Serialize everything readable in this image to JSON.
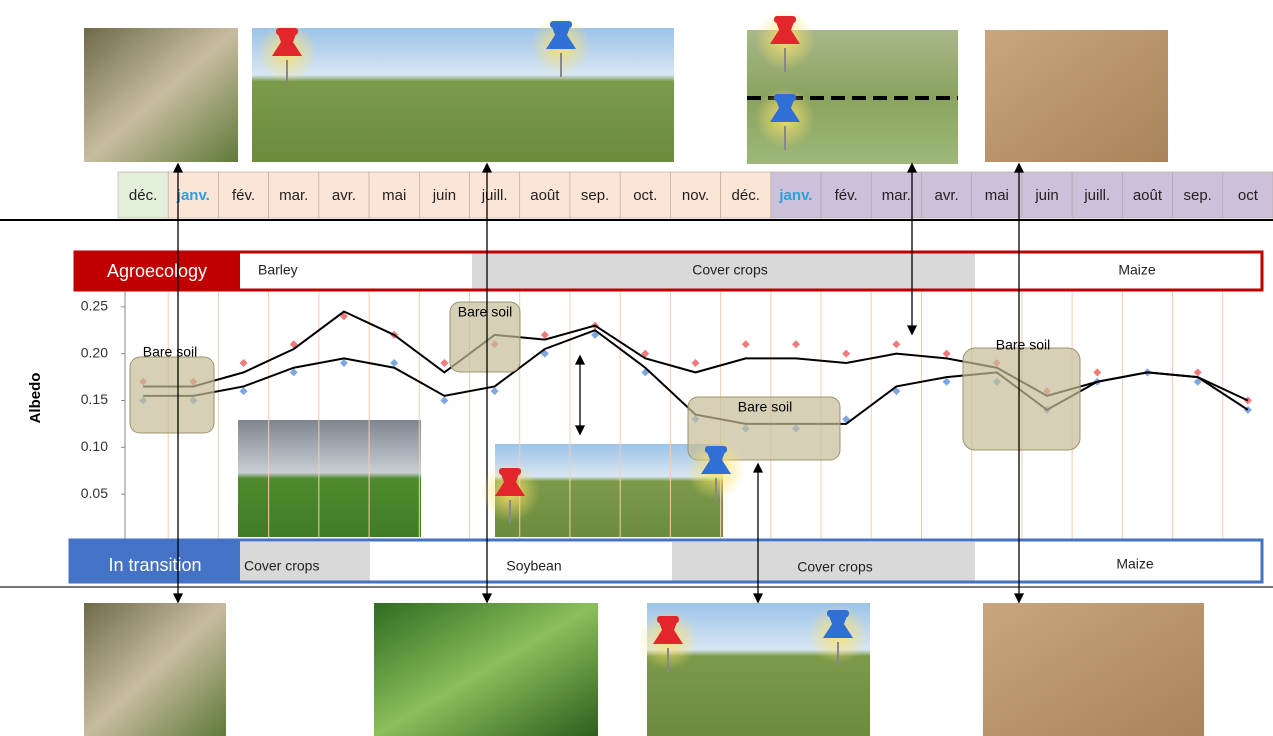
{
  "chart_data": {
    "type": "scatter",
    "y_label": "Albedo",
    "categories": [
      "déc.",
      "janv.",
      "fév.",
      "mar.",
      "avr.",
      "mai",
      "juin",
      "juill.",
      "août",
      "sep.",
      "oct.",
      "nov.",
      "déc.",
      "janv.",
      "fév.",
      "mar.",
      "avr.",
      "mai",
      "juin",
      "juill.",
      "août",
      "sep.",
      "oct"
    ],
    "series": [
      {
        "type": "scatter",
        "color": "#f07b7b",
        "values": [
          0.17,
          0.17,
          0.19,
          0.21,
          0.24,
          0.22,
          0.19,
          0.21,
          0.22,
          0.23,
          0.2,
          0.19,
          0.21,
          0.21,
          0.2,
          0.21,
          0.2,
          0.19,
          0.16,
          0.18,
          0.18,
          0.18,
          0.15
        ]
      },
      {
        "type": "scatter",
        "color": "#7ea6e0",
        "values": [
          0.15,
          0.15,
          0.16,
          0.18,
          0.19,
          0.19,
          0.15,
          0.16,
          0.2,
          0.22,
          0.18,
          0.13,
          0.12,
          0.12,
          0.13,
          0.16,
          0.17,
          0.17,
          0.14,
          0.17,
          0.18,
          0.17,
          0.14
        ]
      },
      {
        "type": "line",
        "color": "#000000",
        "values": [
          0.165,
          0.165,
          0.18,
          0.205,
          0.245,
          0.22,
          0.18,
          0.22,
          0.215,
          0.23,
          0.195,
          0.18,
          0.195,
          0.195,
          0.19,
          0.2,
          0.195,
          0.185,
          0.155,
          0.17,
          0.18,
          0.175,
          0.15
        ]
      },
      {
        "type": "line",
        "color": "#000000",
        "values": [
          0.155,
          0.155,
          0.165,
          0.185,
          0.195,
          0.185,
          0.155,
          0.165,
          0.205,
          0.225,
          0.185,
          0.135,
          0.125,
          0.125,
          0.125,
          0.165,
          0.175,
          0.18,
          0.14,
          0.17,
          0.18,
          0.175,
          0.14
        ]
      }
    ],
    "ylim": [
      0,
      0.3
    ],
    "yticks": [
      0.05,
      {
        "value": 0.1,
        "label": "0.10"
      },
      0.15,
      {
        "value": 0.2,
        "label": "0.20"
      },
      0.25
    ],
    "grid": true
  },
  "rows": [
    {
      "label": "Agroecology",
      "segments": [
        "Barley",
        "Cover crops",
        "Maize"
      ]
    },
    {
      "label": "In transition",
      "segments": [
        "Cover crops",
        "Soybean",
        "Cover crops",
        "Maize"
      ]
    }
  ],
  "annotations": [
    "Bare soil",
    "Bare soil",
    "Bare soil",
    "Bare soil"
  ]
}
